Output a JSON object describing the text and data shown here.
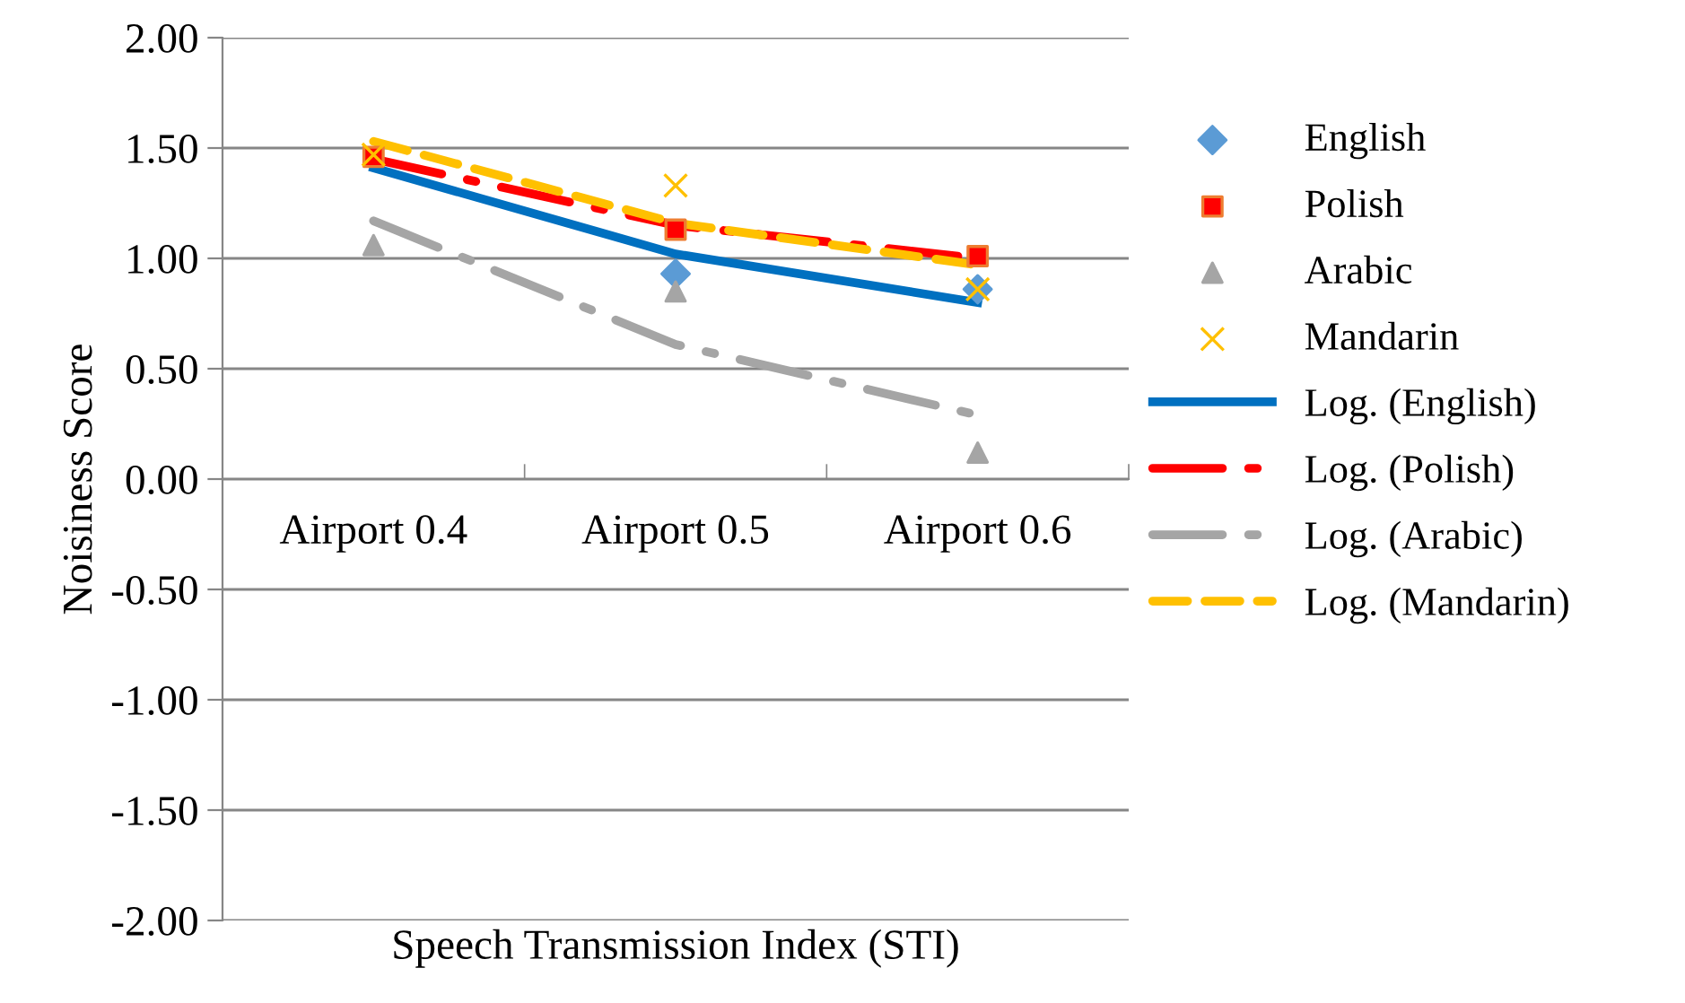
{
  "chart_data": {
    "type": "scatter",
    "xlabel": "Speech Transmission Index (STI)",
    "ylabel": "Noisiness Score",
    "categories": [
      "Airport 0.4",
      "Airport 0.5",
      "Airport 0.6"
    ],
    "ylim": [
      -2,
      2
    ],
    "yticks": [
      {
        "value": -2,
        "label": "-2.00"
      },
      {
        "value": -1.5,
        "label": "-1.50"
      },
      {
        "value": -1,
        "label": "-1.00"
      },
      {
        "value": -0.5,
        "label": "-0.50"
      },
      {
        "value": 0,
        "label": "0.00"
      },
      {
        "value": 0.5,
        "label": "0.50"
      },
      {
        "value": 1,
        "label": "1.00"
      },
      {
        "value": 1.5,
        "label": "1.50"
      },
      {
        "value": 2,
        "label": "2.00"
      }
    ],
    "grid": "y",
    "legend": "right",
    "series": [
      {
        "name": "English",
        "marker": "diamond",
        "color": "#5b9bd5",
        "values": [
          null,
          0.93,
          0.86
        ]
      },
      {
        "name": "Polish",
        "marker": "square",
        "color": "#ff0000",
        "values": [
          1.46,
          1.13,
          1.01
        ]
      },
      {
        "name": "Arabic",
        "marker": "triangle",
        "color": "#a5a5a5",
        "values": [
          1.06,
          0.85,
          0.12
        ]
      },
      {
        "name": "Mandarin",
        "marker": "cross",
        "color": "#ffc000",
        "values": [
          1.47,
          1.33,
          0.86
        ]
      },
      {
        "name": "Log. (English)",
        "type": "line",
        "line_style": "solid",
        "color": "#0070c0",
        "values": [
          1.41,
          1.02,
          0.8
        ]
      },
      {
        "name": "Log. (Polish)",
        "type": "line",
        "line_style": "dashdot",
        "color": "#ff0000",
        "values": [
          1.45,
          1.15,
          1.0
        ]
      },
      {
        "name": "Log. (Arabic)",
        "type": "line",
        "line_style": "dashdot",
        "color": "#a5a5a5",
        "values": [
          1.17,
          0.61,
          0.29
        ]
      },
      {
        "name": "Log. (Mandarin)",
        "type": "line",
        "line_style": "dashed",
        "color": "#ffc000",
        "values": [
          1.53,
          1.16,
          0.97
        ]
      }
    ]
  }
}
